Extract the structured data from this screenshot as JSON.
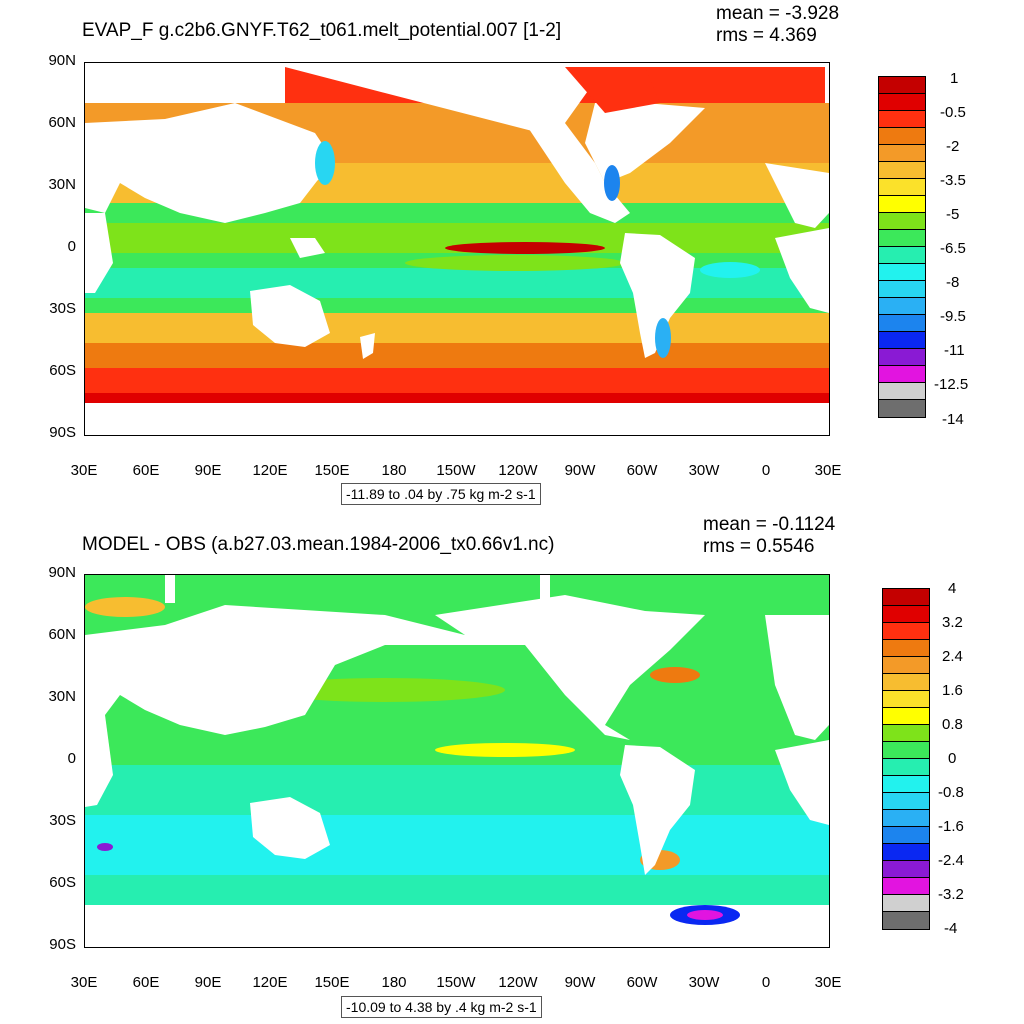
{
  "top": {
    "title": "EVAP_F g.c2b6.GNYF.T62_t061.melt_potential.007 [1-2]",
    "mean": "mean = -3.928",
    "rms": "rms = 4.369",
    "range_text": "-11.89 to .04 by .75 kg m-2 s-1",
    "colorbar_labels": [
      "1",
      "-0.5",
      "-2",
      "-3.5",
      "-5",
      "-6.5",
      "-8",
      "-9.5",
      "-11",
      "-12.5",
      "-14"
    ],
    "colorbar_colors": [
      "#c40000",
      "#e00000",
      "#ff3010",
      "#ee7a10",
      "#f39a28",
      "#f7bd30",
      "#fbe12a",
      "#ffff00",
      "#7ee31a",
      "#3ce85a",
      "#26eeb0",
      "#22f2ee",
      "#28d6f2",
      "#2ab0f4",
      "#1c84ee",
      "#0a28f2",
      "#8a1ad4",
      "#e214e0",
      "#d0d0d0",
      "#6e6e6e"
    ]
  },
  "bottom": {
    "title": "MODEL - OBS (a.b27.03.mean.1984-2006_tx0.66v1.nc)",
    "mean": "mean = -0.1124",
    "rms": "rms = 0.5546",
    "range_text": "-10.09 to 4.38 by .4 kg m-2 s-1",
    "colorbar_labels": [
      "4",
      "3.2",
      "2.4",
      "1.6",
      "0.8",
      "0",
      "-0.8",
      "-1.6",
      "-2.4",
      "-3.2",
      "-4"
    ],
    "colorbar_colors": [
      "#c40000",
      "#e00000",
      "#ff3010",
      "#ee7a10",
      "#f39a28",
      "#f7bd30",
      "#fbe12a",
      "#ffff00",
      "#7ee31a",
      "#3ce85a",
      "#26eeb0",
      "#22f2ee",
      "#28d6f2",
      "#2ab0f4",
      "#1c84ee",
      "#0a28f2",
      "#8a1ad4",
      "#e214e0",
      "#d0d0d0",
      "#6e6e6e"
    ]
  },
  "lat_labels": [
    "90N",
    "60N",
    "30N",
    "0",
    "30S",
    "60S",
    "90S"
  ],
  "lon_labels": [
    "30E",
    "60E",
    "90E",
    "120E",
    "150E",
    "180",
    "150W",
    "120W",
    "90W",
    "60W",
    "30W",
    "0",
    "30E"
  ],
  "colors": {
    "land": "#ffffff",
    "top_ocean_base": "#f39a28",
    "bottom_ocean_base": "#26eeb0"
  }
}
